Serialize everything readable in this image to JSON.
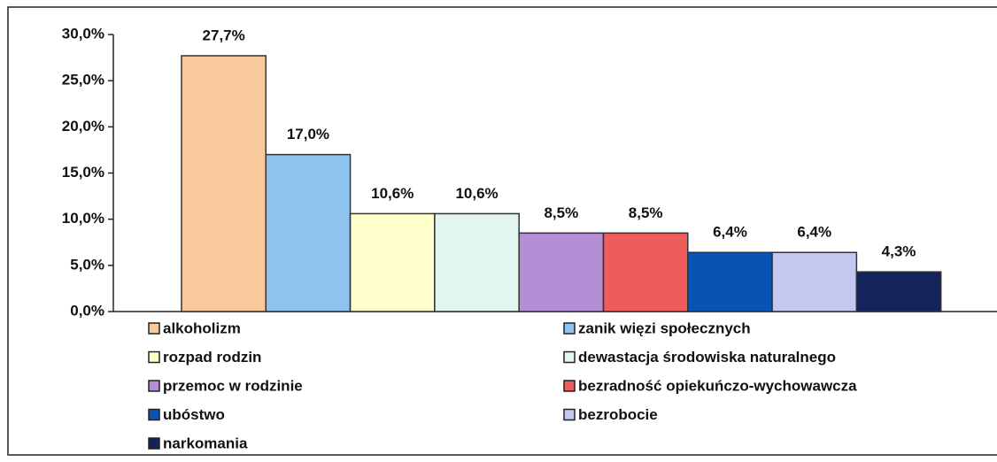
{
  "chart_data": {
    "type": "bar",
    "categories": [
      null
    ],
    "ylim": [
      0,
      30
    ],
    "yticks": [
      {
        "value": 0,
        "label": "0,0%"
      },
      {
        "value": 5,
        "label": "5,0%"
      },
      {
        "value": 10,
        "label": "10,0%"
      },
      {
        "value": 15,
        "label": "15,0%"
      },
      {
        "value": 20,
        "label": "20,0%"
      },
      {
        "value": 25,
        "label": "25,0%"
      },
      {
        "value": 30,
        "label": "30,0%"
      }
    ],
    "series": [
      {
        "name": "alkoholizm",
        "color": "#f9c89b",
        "values": [
          27.7
        ],
        "value_labels": [
          "27,7%"
        ]
      },
      {
        "name": "zanik więzi społecznych",
        "color": "#8ec2ef",
        "values": [
          17.0
        ],
        "value_labels": [
          "17,0%"
        ]
      },
      {
        "name": "rozpad rodzin",
        "color": "#ffffcc",
        "values": [
          10.6
        ],
        "value_labels": [
          "10,6%"
        ]
      },
      {
        "name": "dewastacja środowiska naturalnego",
        "color": "#e2f5f0",
        "values": [
          10.6
        ],
        "value_labels": [
          "10,6%"
        ]
      },
      {
        "name": "przemoc w rodzinie",
        "color": "#b48fd6",
        "values": [
          8.5
        ],
        "value_labels": [
          "8,5%"
        ]
      },
      {
        "name": "bezradność opiekuńczo-wychowawcza",
        "color": "#ee5c5c",
        "values": [
          8.5
        ],
        "value_labels": [
          "8,5%"
        ]
      },
      {
        "name": "ubóstwo",
        "color": "#0b52b5",
        "values": [
          6.4
        ],
        "value_labels": [
          "6,4%"
        ]
      },
      {
        "name": "bezrobocie",
        "color": "#c4c8f0",
        "values": [
          6.4
        ],
        "value_labels": [
          "6,4%"
        ]
      },
      {
        "name": "narkomania",
        "color": "#14235a",
        "values": [
          4.3
        ],
        "value_labels": [
          "4,3%"
        ]
      }
    ]
  }
}
